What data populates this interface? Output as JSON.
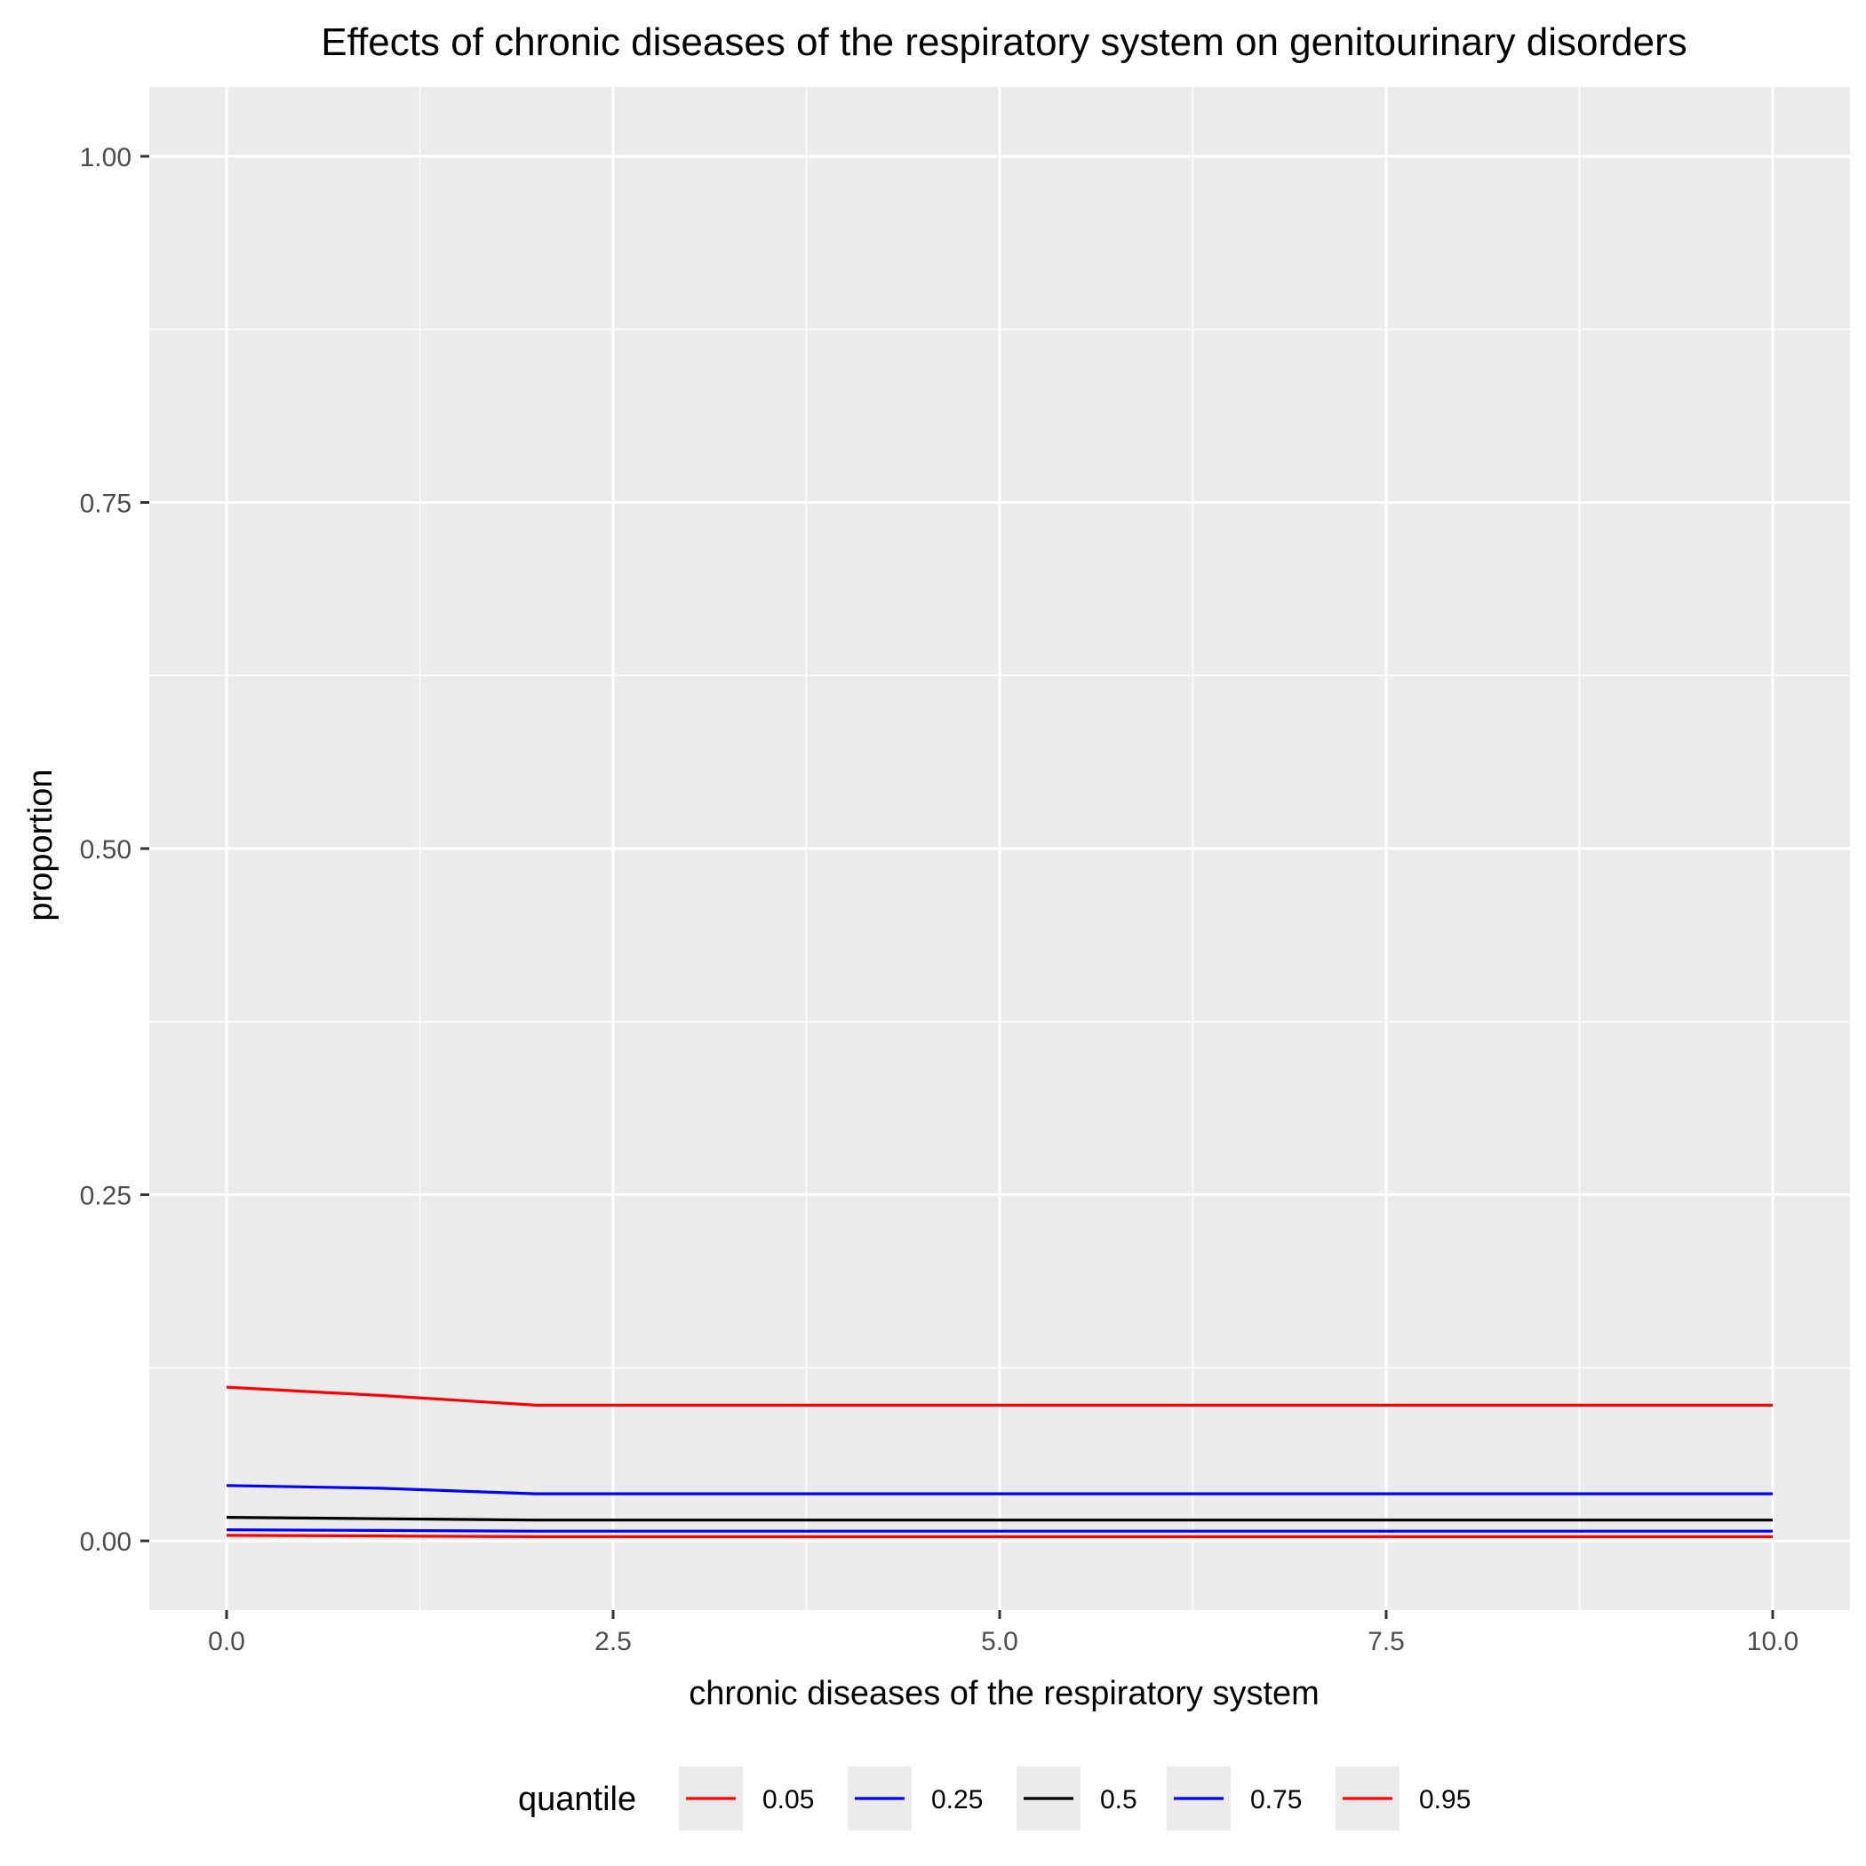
{
  "chart_data": {
    "type": "line",
    "title": "Effects of chronic diseases of the respiratory system on genitourinary disorders",
    "xlabel": "chronic diseases of the respiratory system",
    "ylabel": "proportion",
    "xlim": [
      -0.5,
      10.5
    ],
    "ylim": [
      -0.05,
      1.05
    ],
    "x_ticks": [
      0,
      2.5,
      5,
      7.5,
      10
    ],
    "x_tick_labels": [
      "0.0",
      "2.5",
      "5.0",
      "7.5",
      "10.0"
    ],
    "y_ticks": [
      0,
      0.25,
      0.5,
      0.75,
      1
    ],
    "y_tick_labels": [
      "0.00",
      "0.25",
      "0.50",
      "0.75",
      "1.00"
    ],
    "grid": true,
    "legend": {
      "title": "quantile",
      "position": "bottom"
    },
    "x": [
      0,
      1,
      2,
      3,
      4,
      5,
      6,
      7,
      8,
      9,
      10
    ],
    "series": [
      {
        "name": "0.05",
        "color": "#ff0000",
        "values": [
          0.004,
          0.0035,
          0.003,
          0.003,
          0.003,
          0.003,
          0.003,
          0.003,
          0.003,
          0.003,
          0.003
        ]
      },
      {
        "name": "0.25",
        "color": "#0000ff",
        "values": [
          0.008,
          0.0075,
          0.007,
          0.007,
          0.007,
          0.007,
          0.007,
          0.007,
          0.007,
          0.007,
          0.007
        ]
      },
      {
        "name": "0.5",
        "color": "#000000",
        "values": [
          0.017,
          0.016,
          0.015,
          0.015,
          0.015,
          0.015,
          0.015,
          0.015,
          0.015,
          0.015,
          0.015
        ]
      },
      {
        "name": "0.75",
        "color": "#0000ff",
        "values": [
          0.04,
          0.038,
          0.034,
          0.034,
          0.034,
          0.034,
          0.034,
          0.034,
          0.034,
          0.034,
          0.034
        ]
      },
      {
        "name": "0.95",
        "color": "#ff0000",
        "values": [
          0.111,
          0.105,
          0.098,
          0.098,
          0.098,
          0.098,
          0.098,
          0.098,
          0.098,
          0.098,
          0.098
        ]
      }
    ]
  }
}
